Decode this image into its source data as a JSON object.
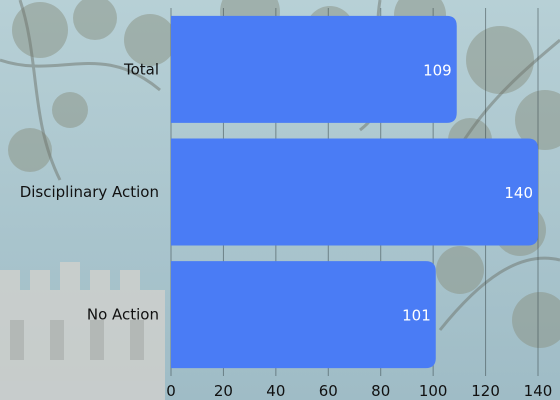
{
  "chart_data": {
    "type": "bar",
    "orientation": "horizontal",
    "categories": [
      "Total",
      "Disciplinary Action",
      "No Action"
    ],
    "values": [
      109,
      140,
      101
    ],
    "data_labels": [
      "109",
      "140",
      "101"
    ],
    "xlim": [
      0,
      140
    ],
    "xticks": [
      0,
      20,
      40,
      60,
      80,
      100,
      120,
      140
    ],
    "xtick_labels": [
      "0",
      "20",
      "40",
      "60",
      "80",
      "100",
      "120",
      "140"
    ],
    "grid": "vertical",
    "legend": "none"
  },
  "colors": {
    "bar": "#4a7cf5",
    "grid": "#3d4a4f",
    "text": "#111111",
    "value_text": "#ffffff",
    "sky": "#a9c7cf",
    "foliage": "#8f9a8e",
    "building": "#d4d2cd"
  }
}
